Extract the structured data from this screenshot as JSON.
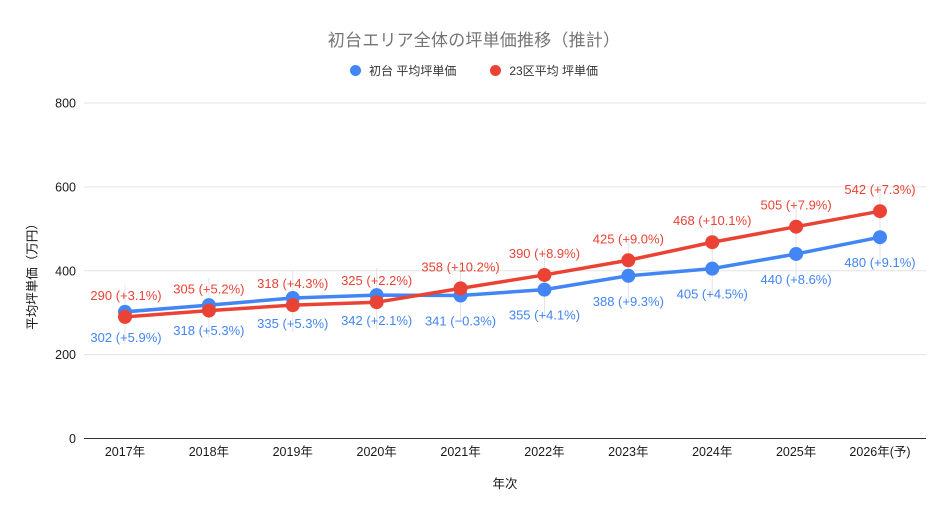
{
  "chart_data": {
    "type": "line",
    "title": "初台エリア全体の坪単価推移（推計）",
    "xlabel": "年次",
    "ylabel": "平均坪単価（万円）",
    "ylim": [
      0,
      800
    ],
    "yticks": [
      0,
      200,
      400,
      600,
      800
    ],
    "categories": [
      "2017年",
      "2018年",
      "2019年",
      "2020年",
      "2021年",
      "2022年",
      "2023年",
      "2024年",
      "2025年",
      "2026年(予)"
    ],
    "series": [
      {
        "name": "初台 平均坪単価",
        "color": "#4285F4",
        "values": [
          302,
          318,
          335,
          342,
          341,
          355,
          388,
          405,
          440,
          480
        ],
        "point_labels": [
          "302 (+5.9%)",
          "318 (+5.3%)",
          "335 (+5.3%)",
          "342 (+2.1%)",
          "341 (−0.3%)",
          "355 (+4.1%)",
          "388 (+9.3%)",
          "405 (+4.5%)",
          "440 (+8.6%)",
          "480 (+9.1%)"
        ],
        "label_position": "below"
      },
      {
        "name": "23区平均 坪単価",
        "color": "#EA4335",
        "values": [
          290,
          305,
          318,
          325,
          358,
          390,
          425,
          468,
          505,
          542
        ],
        "point_labels": [
          "290 (+3.1%)",
          "305 (+5.2%)",
          "318 (+4.3%)",
          "325 (+2.2%)",
          "358 (+10.2%)",
          "390 (+8.9%)",
          "425 (+9.0%)",
          "468 (+10.1%)",
          "505 (+7.9%)",
          "542 (+7.3%)"
        ],
        "label_position": "above"
      }
    ],
    "legend_position": "top",
    "grid": true,
    "colors": {
      "grid": "#e3e3e3",
      "baseline": "#333333",
      "title": "#757575",
      "tick_label": "#1a1a1a",
      "point_guide": "#e3e3e3"
    }
  }
}
